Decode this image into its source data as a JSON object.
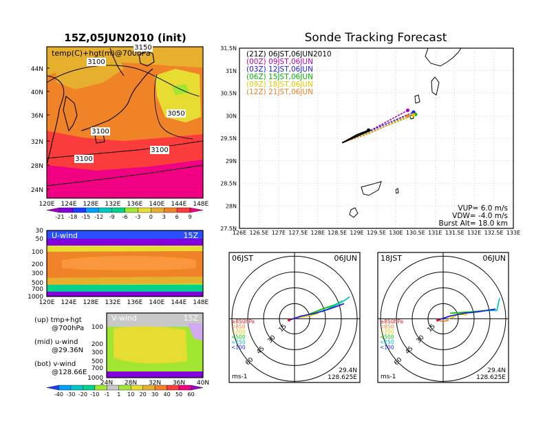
{
  "titles": {
    "left": "15Z,05JUN2010 (init)",
    "right": "Sonde Tracking Forecast"
  },
  "map_left": {
    "field_label": "temp(C)+hgt(m)@700hPa",
    "contour_labels": [
      "3100",
      "3100",
      "3100",
      "3100",
      "3050",
      "3150"
    ],
    "lat_ticks": [
      "44N",
      "40N",
      "36N",
      "32N",
      "28N",
      "24N"
    ],
    "lon_ticks": [
      "120E",
      "124E",
      "128E",
      "132E",
      "136E",
      "140E",
      "144E",
      "148E"
    ],
    "colorbar_labels": [
      "-21",
      "-18",
      "-15",
      "-12",
      "-9",
      "-6",
      "-3",
      "0",
      "3",
      "6",
      "9"
    ],
    "colorbar_colors": [
      "#a000c8",
      "#8200dc",
      "#1e3cff",
      "#00a0ff",
      "#00c8c8",
      "#00d28c",
      "#a0e632",
      "#e6dc32",
      "#e6af2d",
      "#f08228",
      "#fa3c3c",
      "#f00082"
    ]
  },
  "u_wind": {
    "label": "U-wind",
    "time": "15Z",
    "p_ticks": [
      "30",
      "50",
      "100",
      "200",
      "300",
      "500",
      "700",
      "1000"
    ],
    "lon_ticks": [
      "120E",
      "124E",
      "128E",
      "132E",
      "136E",
      "140E",
      "144E",
      "148E"
    ]
  },
  "v_wind": {
    "label": "V-wind",
    "time": "15Z",
    "p_ticks": [
      "100",
      "200",
      "300",
      "500",
      "700",
      "1000"
    ],
    "lat_ticks": [
      "24N",
      "28N",
      "32N",
      "36N",
      "40N"
    ],
    "colorbar_labels": [
      "-40",
      "-30",
      "-20",
      "-10",
      "-1",
      "1",
      "10",
      "20",
      "30",
      "40",
      "50",
      "60"
    ],
    "colorbar_colors": [
      "#1e3cff",
      "#00a0ff",
      "#00c8c8",
      "#00d28c",
      "#a0e632",
      "#c8c8c8",
      "#a0e632",
      "#e6dc32",
      "#e6af2d",
      "#f08228",
      "#fa3c3c",
      "#f00082",
      "#a000c8"
    ]
  },
  "notes": {
    "up": "(up) tmp+hgt",
    "up2": "@700hPa",
    "mid": "(mid) u-wind",
    "mid2": "@29.36N",
    "bot": "(bot) v-wind",
    "bot2": "@128.66E"
  },
  "track_map": {
    "lat_ticks": [
      "31.5N",
      "31N",
      "30.5N",
      "30N",
      "29.5N",
      "29N",
      "28.5N",
      "28N",
      "27.5N"
    ],
    "lon_ticks": [
      "126E",
      "126.5E",
      "127E",
      "127.5E",
      "128E",
      "128.5E",
      "129E",
      "129.5E",
      "130E",
      "130.5E",
      "131E",
      "131.5E",
      "132E",
      "132.5E",
      "133E"
    ],
    "info": [
      "VUP=  6.0  m/s",
      "VDW=  -4.0  m/s",
      "Burst Alt=  18.0  km"
    ]
  },
  "chart_data": {
    "type": "line",
    "title": "Sonde Tracking Forecast",
    "xlim": [
      126,
      133
    ],
    "ylim": [
      27.5,
      31.5
    ],
    "launch": [
      128.625,
      29.4
    ],
    "series": [
      {
        "name": "(21Z)  06JST,06JUN2010",
        "color": "#000000",
        "x": [
          128.625,
          129.0,
          129.3
        ],
        "y": [
          29.4,
          29.58,
          29.68
        ]
      },
      {
        "name": "(00Z)  09JST,06JUN",
        "color": "#b400b4",
        "x": [
          128.625,
          129.3,
          130.3
        ],
        "y": [
          29.4,
          29.65,
          30.12
        ]
      },
      {
        "name": "(03Z)  12JST,06JUN",
        "color": "#1e1edc",
        "x": [
          128.625,
          129.3,
          130.45
        ],
        "y": [
          29.4,
          29.65,
          30.08
        ]
      },
      {
        "name": "(06Z)  15JST,06JUN",
        "color": "#00b400",
        "x": [
          128.625,
          129.3,
          130.5
        ],
        "y": [
          29.4,
          29.62,
          30.03
        ]
      },
      {
        "name": "(09Z)  18JST,06JUN",
        "color": "#e6c800",
        "x": [
          128.625,
          129.3,
          130.45
        ],
        "y": [
          29.4,
          29.62,
          30.02
        ]
      },
      {
        "name": "(12Z)  21JST,06JUN",
        "color": "#f08228",
        "x": [
          128.625,
          129.3,
          130.3
        ],
        "y": [
          29.4,
          29.6,
          30.0
        ]
      }
    ]
  },
  "polar_left": {
    "time": "06JST",
    "date": "06JUN",
    "ring_labels": [
      "15",
      "30",
      "45",
      "60"
    ],
    "legend": [
      "≥850hPa",
      "<850",
      "<700",
      "<500",
      "<250",
      "<100"
    ],
    "legend_colors": [
      "#e61e1e",
      "#f08228",
      "#e6c800",
      "#00c800",
      "#00c8c8",
      "#1e1edc"
    ],
    "units": "ms-1",
    "lat": "29.4N",
    "lon": "128.625E"
  },
  "polar_right": {
    "time": "18JST",
    "date": "06JUN",
    "ring_labels": [
      "15",
      "30",
      "45",
      "60"
    ],
    "legend": [
      "≥850hPa",
      "<850",
      "<700",
      "<500",
      "<250",
      "<100"
    ],
    "legend_colors": [
      "#e61e1e",
      "#f08228",
      "#e6c800",
      "#00c800",
      "#00c8c8",
      "#1e1edc"
    ],
    "units": "ms-1",
    "lat": "29.4N",
    "lon": "128.625E"
  }
}
